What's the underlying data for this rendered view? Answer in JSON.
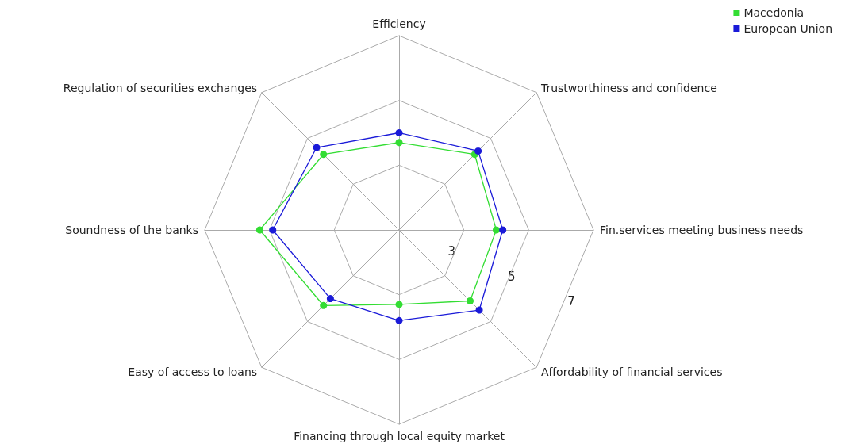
{
  "chart_data": {
    "type": "radar",
    "categories": [
      "Efficiency",
      "Trustworthiness and confidence",
      "Fin.services meeting business needs",
      "Affordability of financial services",
      "Financing through local equity market",
      "Easy of access to loans",
      "Soundness of the banks",
      "Regulation of securities exchanges"
    ],
    "series": [
      {
        "name": "Macedonia",
        "color": "#33dd33",
        "values": [
          3.7,
          4.3,
          4.0,
          4.1,
          3.3,
          4.3,
          5.3,
          4.3
        ]
      },
      {
        "name": "European Union",
        "color": "#1a1ad8",
        "values": [
          4.0,
          4.45,
          4.2,
          4.5,
          3.8,
          4.0,
          4.9,
          4.6
        ]
      }
    ],
    "ylim": [
      1,
      7
    ],
    "yticks": [
      3,
      5,
      7
    ],
    "legend": "top right",
    "marker": "circle"
  }
}
